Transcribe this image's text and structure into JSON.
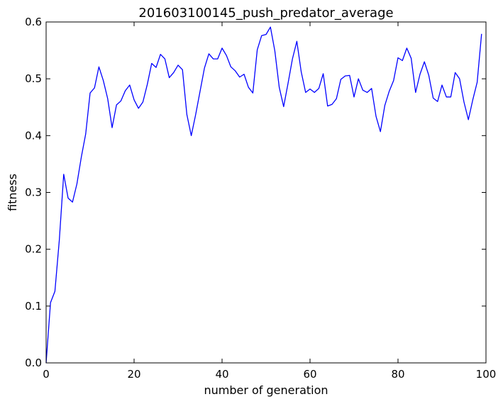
{
  "chart_data": {
    "type": "line",
    "title": "201603100145_push_predator_average",
    "xlabel": "number of generation",
    "ylabel": "fitness",
    "xlim": [
      0,
      100
    ],
    "ylim": [
      0.0,
      0.6
    ],
    "xticks": [
      "0",
      "20",
      "40",
      "60",
      "80",
      "100"
    ],
    "yticks": [
      "0.0",
      "0.1",
      "0.2",
      "0.3",
      "0.4",
      "0.5",
      "0.6"
    ],
    "grid": false,
    "legend": "none",
    "series": [
      {
        "color": "#0000ff",
        "x": [
          0,
          1,
          2,
          3,
          4,
          5,
          6,
          7,
          8,
          9,
          10,
          11,
          12,
          13,
          14,
          15,
          16,
          17,
          18,
          19,
          20,
          21,
          22,
          23,
          24,
          25,
          26,
          27,
          28,
          29,
          30,
          31,
          32,
          33,
          34,
          35,
          36,
          37,
          38,
          39,
          40,
          41,
          42,
          43,
          44,
          45,
          46,
          47,
          48,
          49,
          50,
          51,
          52,
          53,
          54,
          55,
          56,
          57,
          58,
          59,
          60,
          61,
          62,
          63,
          64,
          65,
          66,
          67,
          68,
          69,
          70,
          71,
          72,
          73,
          74,
          75,
          76,
          77,
          78,
          79,
          80,
          81,
          82,
          83,
          84,
          85,
          86,
          87,
          88,
          89,
          90,
          91,
          92,
          93,
          94,
          95,
          96,
          97,
          98,
          99
        ],
        "y": [
          0.0,
          0.106,
          0.126,
          0.216,
          0.332,
          0.29,
          0.283,
          0.315,
          0.362,
          0.403,
          0.475,
          0.484,
          0.521,
          0.497,
          0.465,
          0.414,
          0.454,
          0.461,
          0.479,
          0.489,
          0.463,
          0.448,
          0.459,
          0.49,
          0.527,
          0.52,
          0.543,
          0.535,
          0.502,
          0.511,
          0.524,
          0.516,
          0.437,
          0.4,
          0.437,
          0.478,
          0.519,
          0.544,
          0.535,
          0.535,
          0.554,
          0.541,
          0.521,
          0.514,
          0.503,
          0.508,
          0.485,
          0.475,
          0.551,
          0.576,
          0.578,
          0.591,
          0.549,
          0.485,
          0.451,
          0.492,
          0.535,
          0.566,
          0.512,
          0.476,
          0.482,
          0.476,
          0.483,
          0.509,
          0.452,
          0.455,
          0.465,
          0.499,
          0.505,
          0.506,
          0.468,
          0.5,
          0.48,
          0.476,
          0.483,
          0.434,
          0.407,
          0.453,
          0.478,
          0.497,
          0.537,
          0.532,
          0.554,
          0.536,
          0.476,
          0.508,
          0.53,
          0.506,
          0.466,
          0.46,
          0.489,
          0.468,
          0.468,
          0.511,
          0.5,
          0.459,
          0.428,
          0.463,
          0.494,
          0.579
        ]
      }
    ]
  }
}
